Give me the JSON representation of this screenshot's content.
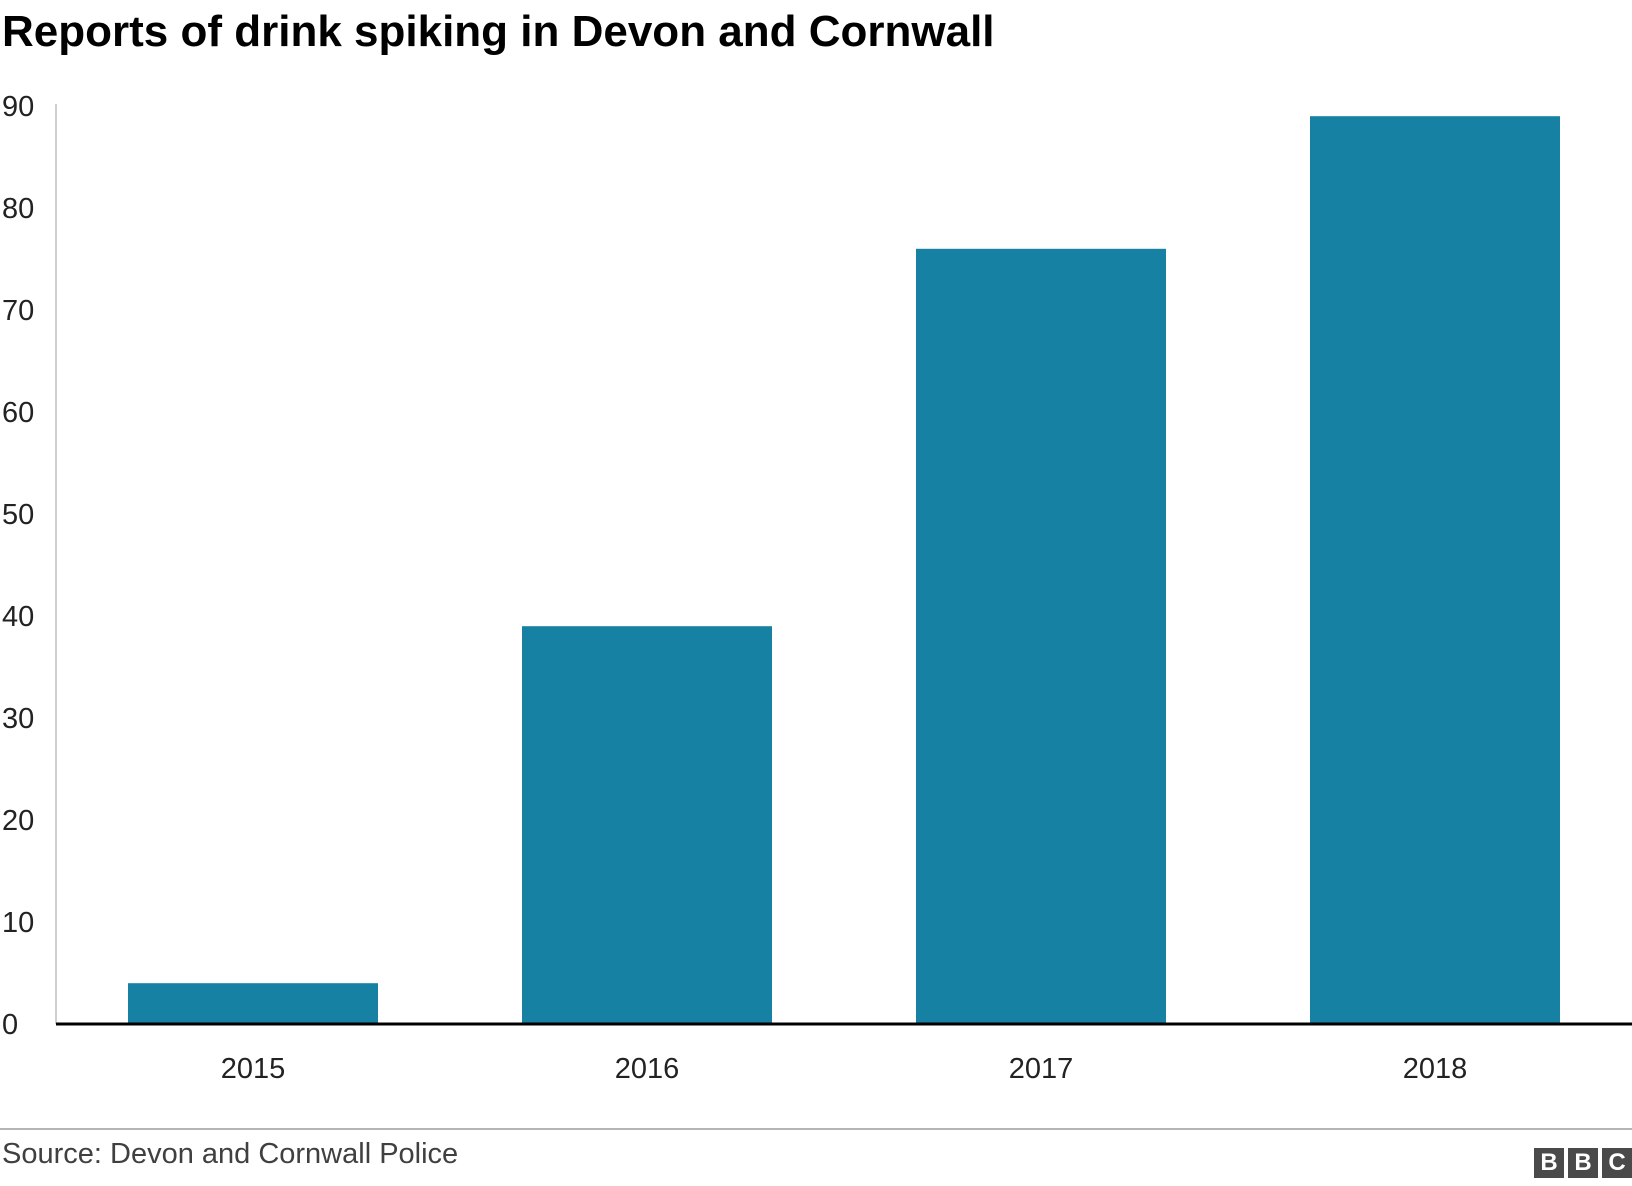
{
  "chart_data": {
    "type": "bar",
    "title": "Reports of drink spiking in Devon and Cornwall",
    "categories": [
      "2015",
      "2016",
      "2017",
      "2018"
    ],
    "values": [
      4,
      39,
      76,
      89
    ],
    "ylim": [
      0,
      90
    ],
    "yticks": [
      "0",
      "10",
      "20",
      "30",
      "40",
      "50",
      "60",
      "70",
      "80",
      "90"
    ],
    "xlabel": "",
    "ylabel": "",
    "grid": false,
    "bar_color": "#1681a3"
  },
  "footer": {
    "source": "Source: Devon and Cornwall Police",
    "logo_letters": [
      "B",
      "B",
      "C"
    ]
  }
}
